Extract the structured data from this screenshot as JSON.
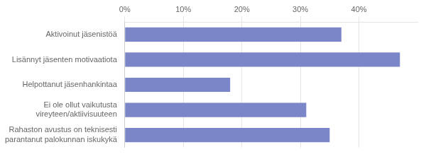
{
  "chart_data": {
    "type": "bar",
    "orientation": "horizontal",
    "categories": [
      "Rahaston avustus on teknisesti\nparantanut palokunnan iskukykä",
      "Ei ole ollut vaikutusta\nvireyteen/aktiivisuuteen",
      "Helpottanut jäsenhankintaa",
      "Lisännyt jäsenten motivaatiota",
      "Aktivoinut jäsenistöä"
    ],
    "values": [
      35,
      31,
      18,
      47,
      37
    ],
    "color": "#7B86C8",
    "xlim": [
      0,
      50
    ],
    "xticks": [
      {
        "value": 0,
        "label": "0%"
      },
      {
        "value": 10,
        "label": "10%"
      },
      {
        "value": 20,
        "label": "20%"
      },
      {
        "value": 30,
        "label": "30%"
      },
      {
        "value": 40,
        "label": "40%"
      }
    ],
    "grid": true
  }
}
